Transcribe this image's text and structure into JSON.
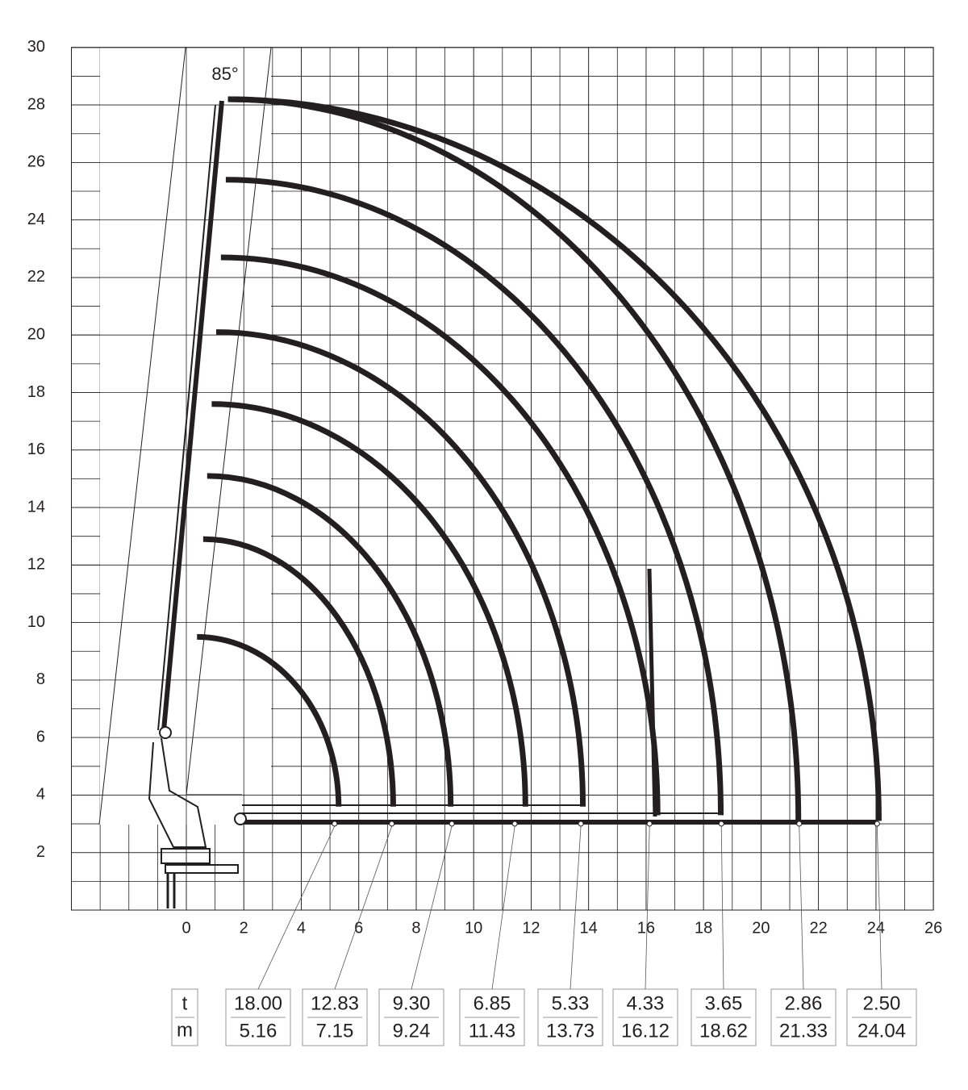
{
  "chart_data": {
    "type": "crane-range",
    "angle_label": "85°",
    "xlim": [
      -4,
      26
    ],
    "ylim": [
      0,
      30
    ],
    "xticks": [
      0,
      2,
      4,
      6,
      8,
      10,
      12,
      14,
      16,
      18,
      20,
      22,
      24,
      26
    ],
    "yticks": [
      2,
      4,
      6,
      8,
      10,
      12,
      14,
      16,
      18,
      20,
      22,
      24,
      26,
      28,
      30
    ],
    "grid": true,
    "color": "#231f20",
    "arcs": [
      {
        "top": 9.5,
        "end": 5.3,
        "base": 3.6
      },
      {
        "top": 12.9,
        "end": 7.2,
        "base": 3.6
      },
      {
        "top": 15.1,
        "end": 9.2,
        "base": 3.6
      },
      {
        "top": 17.6,
        "end": 11.8,
        "base": 3.6
      },
      {
        "top": 20.1,
        "end": 13.8,
        "base": 3.6
      },
      {
        "top": 22.7,
        "end": 16.4,
        "base": 3.3
      },
      {
        "top": 25.4,
        "end": 18.6,
        "base": 3.3
      },
      {
        "top": 28.2,
        "end": 21.3,
        "base": 3.1
      },
      {
        "top": 28.2,
        "end": 24.1,
        "base": 3.1
      }
    ],
    "load_table": {
      "row_labels": [
        "t",
        "m"
      ],
      "loads": [
        "18.00",
        "12.83",
        "9.30",
        "6.85",
        "5.33",
        "4.33",
        "3.65",
        "2.86",
        "2.50"
      ],
      "radii": [
        5.16,
        7.15,
        9.24,
        11.43,
        13.73,
        16.12,
        18.62,
        21.33,
        24.04
      ]
    }
  }
}
